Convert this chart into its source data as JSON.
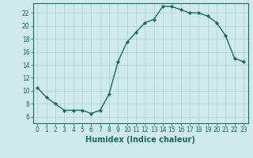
{
  "x": [
    0,
    1,
    2,
    3,
    4,
    5,
    6,
    7,
    8,
    9,
    10,
    11,
    12,
    13,
    14,
    15,
    16,
    17,
    18,
    19,
    20,
    21,
    22,
    23
  ],
  "y": [
    10.5,
    9.0,
    8.0,
    7.0,
    7.0,
    7.0,
    6.5,
    7.0,
    9.5,
    14.5,
    17.5,
    19.0,
    20.5,
    21.0,
    23.0,
    23.0,
    22.5,
    22.0,
    22.0,
    21.5,
    20.5,
    18.5,
    15.0,
    14.5
  ],
  "line_color": "#1a6b5a",
  "marker": "D",
  "markersize": 2,
  "linewidth": 1.0,
  "xlabel": "Humidex (Indice chaleur)",
  "xlim": [
    -0.5,
    23.5
  ],
  "ylim": [
    5.0,
    23.5
  ],
  "yticks": [
    6,
    8,
    10,
    12,
    14,
    16,
    18,
    20,
    22
  ],
  "xticks": [
    0,
    1,
    2,
    3,
    4,
    5,
    6,
    7,
    8,
    9,
    10,
    11,
    12,
    13,
    14,
    15,
    16,
    17,
    18,
    19,
    20,
    21,
    22,
    23
  ],
  "background_color": "#ceeaea",
  "grid_color": "#b0cccc",
  "spine_color": "#1a6b5a",
  "label_color": "#1a6b5a",
  "font_size_ticks": 5.5,
  "font_size_xlabel": 7.0
}
